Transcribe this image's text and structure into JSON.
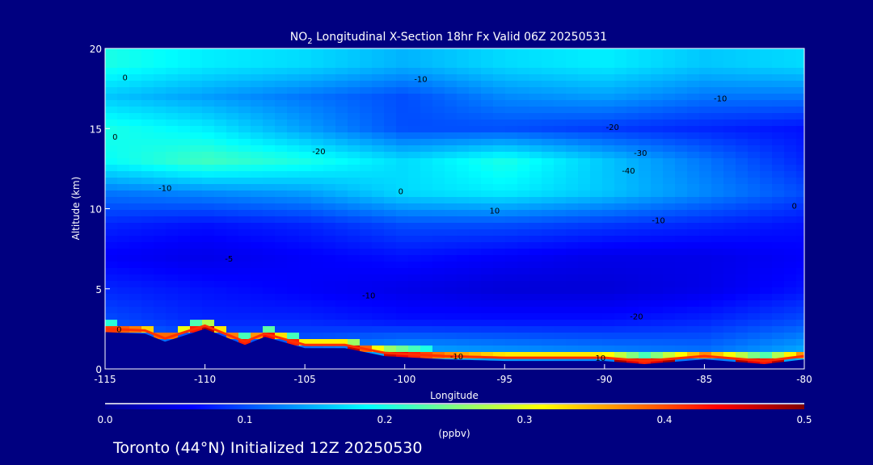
{
  "chart_data": {
    "type": "heatmap",
    "title": "NO2 Longitudinal X-Section 18hr  Fx Valid 06Z 20250531",
    "title_parts": {
      "pre": "NO",
      "sub": "2",
      "post": " Longitudinal X-Section 18hr  Fx Valid 06Z 20250531"
    },
    "xlabel": "Longitude",
    "ylabel": "Altitude (km)",
    "xlim": [
      -115,
      -80
    ],
    "ylim": [
      0,
      20
    ],
    "xticks": [
      "-115",
      "-110",
      "-105",
      "-100",
      "-95",
      "-90",
      "-85",
      "-80"
    ],
    "xtick_values": [
      -115,
      -110,
      -105,
      -100,
      -95,
      -90,
      -85,
      -80
    ],
    "yticks": [
      "0",
      "5",
      "10",
      "15",
      "20"
    ],
    "ytick_values": [
      0,
      5,
      10,
      15,
      20
    ],
    "grid_lon": [
      -115,
      -110,
      -105,
      -100,
      -95,
      -90,
      -85,
      -80
    ],
    "grid_alt": [
      1,
      3,
      5,
      7,
      9,
      11,
      13,
      15,
      17,
      19
    ],
    "values": [
      [
        0.15,
        0.12,
        0.12,
        0.15,
        0.14,
        0.13,
        0.12,
        0.15
      ],
      [
        0.1,
        0.08,
        0.08,
        0.07,
        0.07,
        0.07,
        0.08,
        0.1
      ],
      [
        0.08,
        0.07,
        0.06,
        0.05,
        0.04,
        0.04,
        0.05,
        0.07
      ],
      [
        0.06,
        0.05,
        0.06,
        0.07,
        0.06,
        0.05,
        0.05,
        0.06
      ],
      [
        0.08,
        0.07,
        0.08,
        0.1,
        0.1,
        0.09,
        0.08,
        0.07
      ],
      [
        0.12,
        0.13,
        0.14,
        0.17,
        0.18,
        0.16,
        0.13,
        0.1
      ],
      [
        0.19,
        0.22,
        0.2,
        0.17,
        0.2,
        0.16,
        0.12,
        0.08
      ],
      [
        0.2,
        0.18,
        0.14,
        0.1,
        0.1,
        0.09,
        0.08,
        0.07
      ],
      [
        0.16,
        0.14,
        0.12,
        0.1,
        0.13,
        0.14,
        0.12,
        0.12
      ],
      [
        0.2,
        0.18,
        0.17,
        0.15,
        0.17,
        0.18,
        0.16,
        0.17
      ]
    ],
    "terrain_km": [
      [
        -115,
        2.3
      ],
      [
        -113,
        2.2
      ],
      [
        -112,
        1.7
      ],
      [
        -110,
        2.5
      ],
      [
        -108,
        1.5
      ],
      [
        -107,
        2.0
      ],
      [
        -105,
        1.3
      ],
      [
        -103,
        1.3
      ],
      [
        -101,
        0.8
      ],
      [
        -98,
        0.6
      ],
      [
        -95,
        0.5
      ],
      [
        -90,
        0.5
      ],
      [
        -88,
        0.3
      ],
      [
        -85,
        0.6
      ],
      [
        -82,
        0.3
      ],
      [
        -80,
        0.6
      ]
    ],
    "contour_labels": [
      {
        "text": "-10",
        "lon": -99.2,
        "alt": 17.9
      },
      {
        "text": "-10",
        "lon": -84.2,
        "alt": 16.7
      },
      {
        "text": "-20",
        "lon": -89.6,
        "alt": 14.9
      },
      {
        "text": "-30",
        "lon": -88.2,
        "alt": 13.3
      },
      {
        "text": "-40",
        "lon": -88.8,
        "alt": 12.2
      },
      {
        "text": "-20",
        "lon": -104.3,
        "alt": 13.4
      },
      {
        "text": "-10",
        "lon": -112.0,
        "alt": 11.1
      },
      {
        "text": "0",
        "lon": -114.0,
        "alt": 18.0
      },
      {
        "text": "0",
        "lon": -114.5,
        "alt": 14.3
      },
      {
        "text": "0",
        "lon": -100.2,
        "alt": 10.9
      },
      {
        "text": "10",
        "lon": -95.5,
        "alt": 9.7
      },
      {
        "text": "-10",
        "lon": -87.3,
        "alt": 9.1
      },
      {
        "text": "-5",
        "lon": -108.8,
        "alt": 6.7
      },
      {
        "text": "-10",
        "lon": -101.8,
        "alt": 4.4
      },
      {
        "text": "0",
        "lon": -114.3,
        "alt": 2.3
      },
      {
        "text": "-20",
        "lon": -88.4,
        "alt": 3.1
      },
      {
        "text": "-10",
        "lon": -97.4,
        "alt": 0.6
      },
      {
        "text": "10",
        "lon": -90.2,
        "alt": 0.5
      },
      {
        "text": "0",
        "lon": -80.5,
        "alt": 10.0
      }
    ],
    "colorbar": {
      "min": 0.0,
      "max": 0.5,
      "ticks": [
        "0.0",
        "0.1",
        "0.2",
        "0.3",
        "0.4",
        "0.5"
      ],
      "tick_values": [
        0,
        0.1,
        0.2,
        0.3,
        0.4,
        0.5
      ],
      "units": "(ppbv)",
      "colors": [
        "#000090",
        "#0000ff",
        "#0080ff",
        "#00ffff",
        "#80ff80",
        "#ffff00",
        "#ff8000",
        "#ff0000",
        "#800000"
      ]
    }
  },
  "footer": "Toronto (44°N) Initialized 12Z 20250530",
  "background": "#000080"
}
